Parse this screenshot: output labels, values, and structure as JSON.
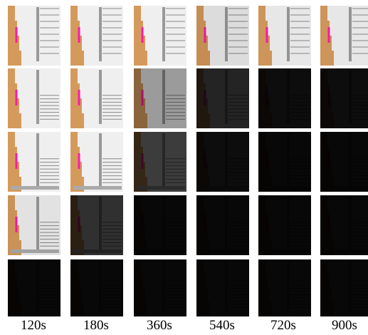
{
  "labels": [
    "120s",
    "180s",
    "360s",
    "540s",
    "720s",
    "900s"
  ]
}
